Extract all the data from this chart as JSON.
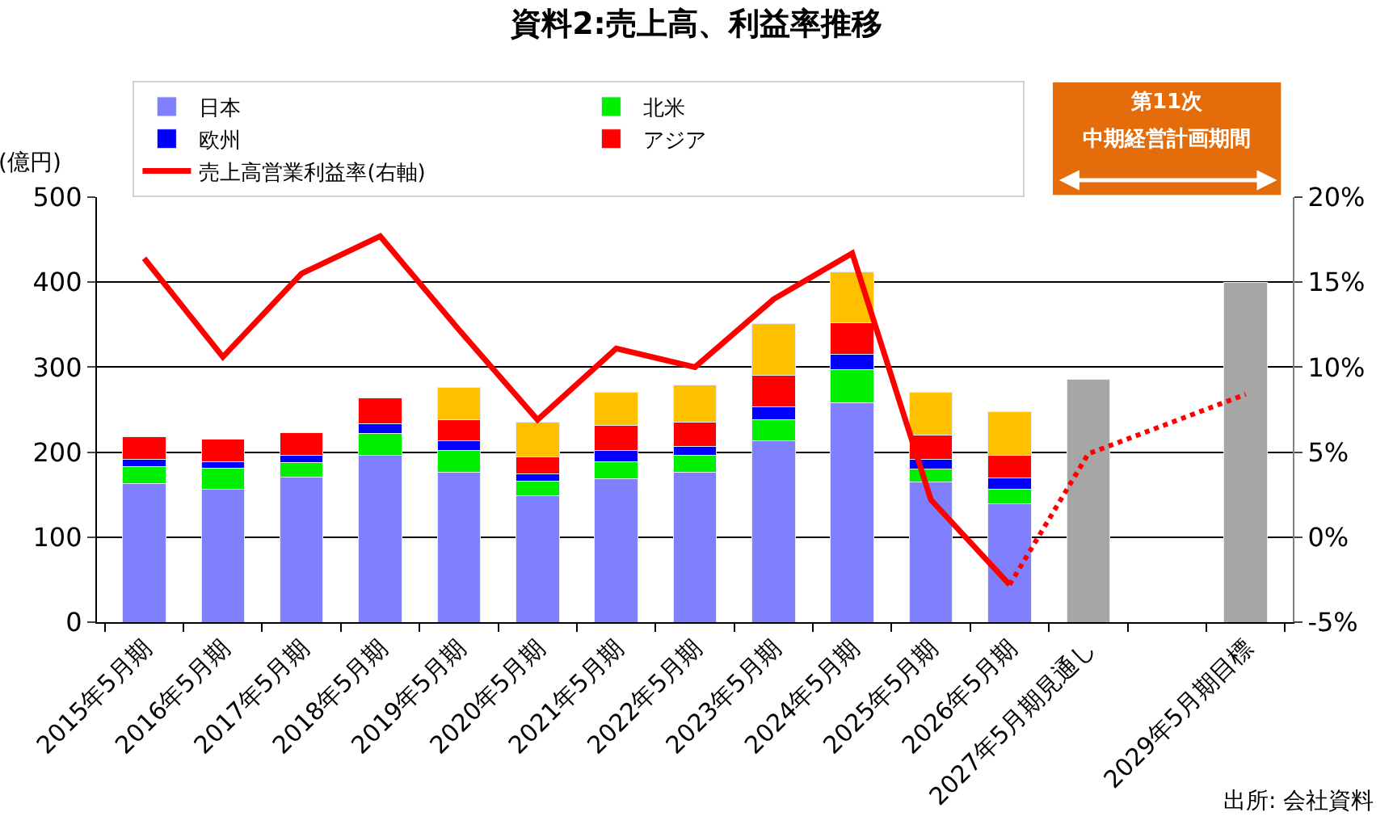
{
  "chart_data": {
    "type": "bar",
    "title": "資料2:売上高、利益率推移",
    "ylabel": "(億円)",
    "categories": [
      "2015年5月期",
      "2016年5月期",
      "2017年5月期",
      "2018年5月期",
      "2019年5月期",
      "2020年5月期",
      "2021年5月期",
      "2022年5月期",
      "2023年5月期",
      "2024年5月期",
      "2025年5月期",
      "2026年5月期",
      "2027年5月期見通し",
      null,
      "2029年5月期目標"
    ],
    "stacked": true,
    "series": [
      {
        "name": "日本",
        "color": "#8080ff",
        "values": [
          163,
          156,
          171,
          196,
          176,
          149,
          169,
          176,
          213,
          258,
          165,
          139,
          null,
          null,
          null
        ]
      },
      {
        "name": "北米",
        "color": "#00ee00",
        "values": [
          20,
          25,
          17,
          26,
          26,
          17,
          20,
          20,
          25,
          39,
          15,
          17,
          null,
          null,
          null
        ]
      },
      {
        "name": "欧州",
        "color": "#0000ff",
        "values": [
          9,
          8,
          8,
          11,
          11,
          8,
          13,
          11,
          15,
          18,
          12,
          14,
          null,
          null,
          null
        ]
      },
      {
        "name": "アジア",
        "color": "#ff0000",
        "values": [
          26,
          26,
          27,
          31,
          25,
          20,
          29,
          28,
          37,
          37,
          28,
          26,
          null,
          null,
          null
        ]
      },
      {
        "color": "#ffc000",
        "values": [
          null,
          null,
          null,
          null,
          38,
          41,
          39,
          44,
          61,
          60,
          50,
          52,
          null,
          null,
          null
        ]
      },
      {
        "color": "#a6a6a6",
        "values": [
          null,
          null,
          null,
          null,
          null,
          null,
          null,
          null,
          null,
          null,
          null,
          null,
          286,
          null,
          400
        ]
      },
      {
        "name": "売上高営業利益率(右軸)",
        "type": "line",
        "axis": "y2",
        "color": "#ff0000",
        "line_style": "solid",
        "values": [
          16.4,
          10.6,
          15.5,
          17.7,
          12.2,
          6.9,
          11.1,
          10.0,
          14.0,
          16.7,
          2.2,
          -2.8,
          null,
          null,
          null
        ]
      },
      {
        "type": "line",
        "axis": "y2",
        "color": "#ff0000",
        "line_style": "dotted",
        "values": [
          null,
          null,
          null,
          null,
          null,
          null,
          null,
          null,
          null,
          null,
          null,
          -2.8,
          4.9,
          null,
          8.4
        ]
      }
    ],
    "ylim": [
      0,
      500
    ],
    "yticks": [
      0,
      100,
      200,
      300,
      400,
      500
    ],
    "y2lim": [
      -5,
      20
    ],
    "y2ticks": [
      {
        "value": -5,
        "label": "-5%"
      },
      {
        "value": 0,
        "label": "0%"
      },
      {
        "value": 5,
        "label": "5%"
      },
      {
        "value": 10,
        "label": "10%"
      },
      {
        "value": 15,
        "label": "15%"
      },
      {
        "value": 20,
        "label": "20%"
      }
    ],
    "grid": "y",
    "legend": "top left",
    "annotations": [
      "第11次",
      "中期経営計画期間",
      "出所: 会社資料"
    ]
  }
}
